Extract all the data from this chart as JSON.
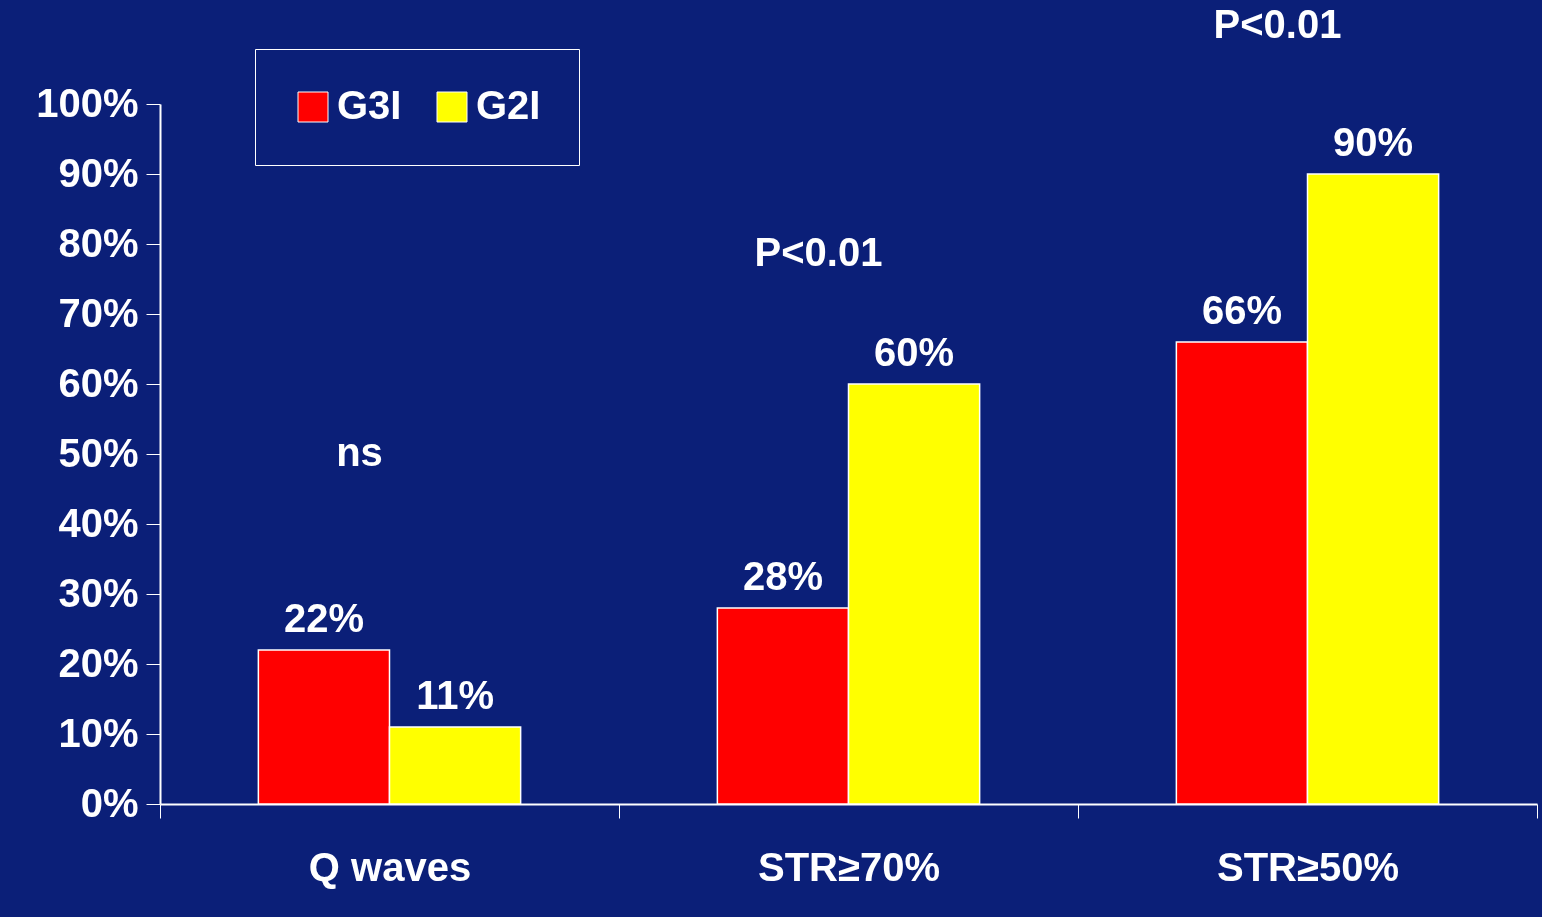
{
  "chart_data": {
    "type": "bar",
    "categories": [
      "Q waves",
      "STR≥70%",
      "STR≥50%"
    ],
    "series": [
      {
        "name": "G3I",
        "color": "#ff0000",
        "values": [
          22,
          28,
          66
        ],
        "value_labels": [
          "22%",
          "28%",
          "66%"
        ]
      },
      {
        "name": "G2I",
        "color": "#ffff00",
        "values": [
          11,
          60,
          90
        ],
        "value_labels": [
          "11%",
          "60%",
          "90%"
        ]
      }
    ],
    "ylim": [
      0,
      100
    ],
    "yticks": [
      {
        "value": 0,
        "label": "0%"
      },
      {
        "value": 10,
        "label": "10%"
      },
      {
        "value": 20,
        "label": "20%"
      },
      {
        "value": 30,
        "label": "30%"
      },
      {
        "value": 40,
        "label": "40%"
      },
      {
        "value": 50,
        "label": "50%"
      },
      {
        "value": 60,
        "label": "60%"
      },
      {
        "value": 70,
        "label": "70%"
      },
      {
        "value": 80,
        "label": "80%"
      },
      {
        "value": 90,
        "label": "90%"
      },
      {
        "value": 100,
        "label": "100%"
      }
    ],
    "annotations": [
      "ns",
      "P<0.01",
      "P<0.01"
    ],
    "legend": "top left",
    "grid": false
  }
}
